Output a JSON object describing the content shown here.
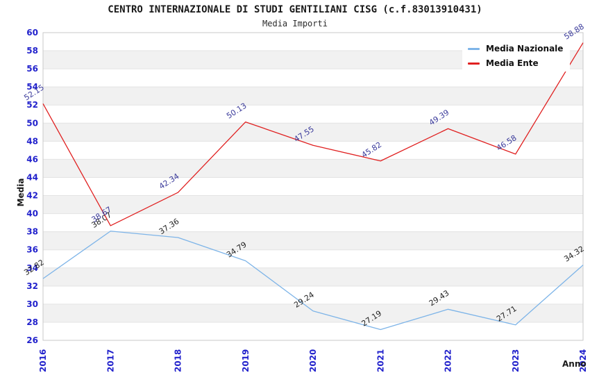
{
  "header": {
    "title": "CENTRO INTERNAZIONALE DI STUDI GENTILIANI CISG (c.f.83013910431)",
    "subtitle": "Media Importi"
  },
  "chart_data": {
    "type": "line",
    "x": [
      2016,
      2017,
      2018,
      2019,
      2020,
      2021,
      2022,
      2023,
      2024
    ],
    "series": [
      {
        "name": "Media Nazionale",
        "color": "#7db4e8",
        "label_color": "#1f1f1f",
        "values": [
          32.82,
          38.07,
          37.36,
          34.79,
          29.24,
          27.19,
          29.43,
          27.71,
          34.32
        ]
      },
      {
        "name": "Media Ente",
        "color": "#e02020",
        "label_color": "#3b3b9b",
        "values": [
          52.15,
          38.67,
          42.34,
          50.13,
          47.55,
          45.82,
          49.39,
          46.58,
          58.88
        ]
      }
    ],
    "xlabel": "Anno",
    "ylabel": "Media",
    "ylim": [
      26,
      60
    ],
    "ytick_step": 2,
    "grid": "horizontal-bands",
    "legend_position": "top-right",
    "colors": {
      "axis_tick_text": "#2222cc",
      "band_fill": "#f1f1f1",
      "grid_line": "#e3e3e3",
      "plot_border": "#c9c9c9"
    }
  }
}
